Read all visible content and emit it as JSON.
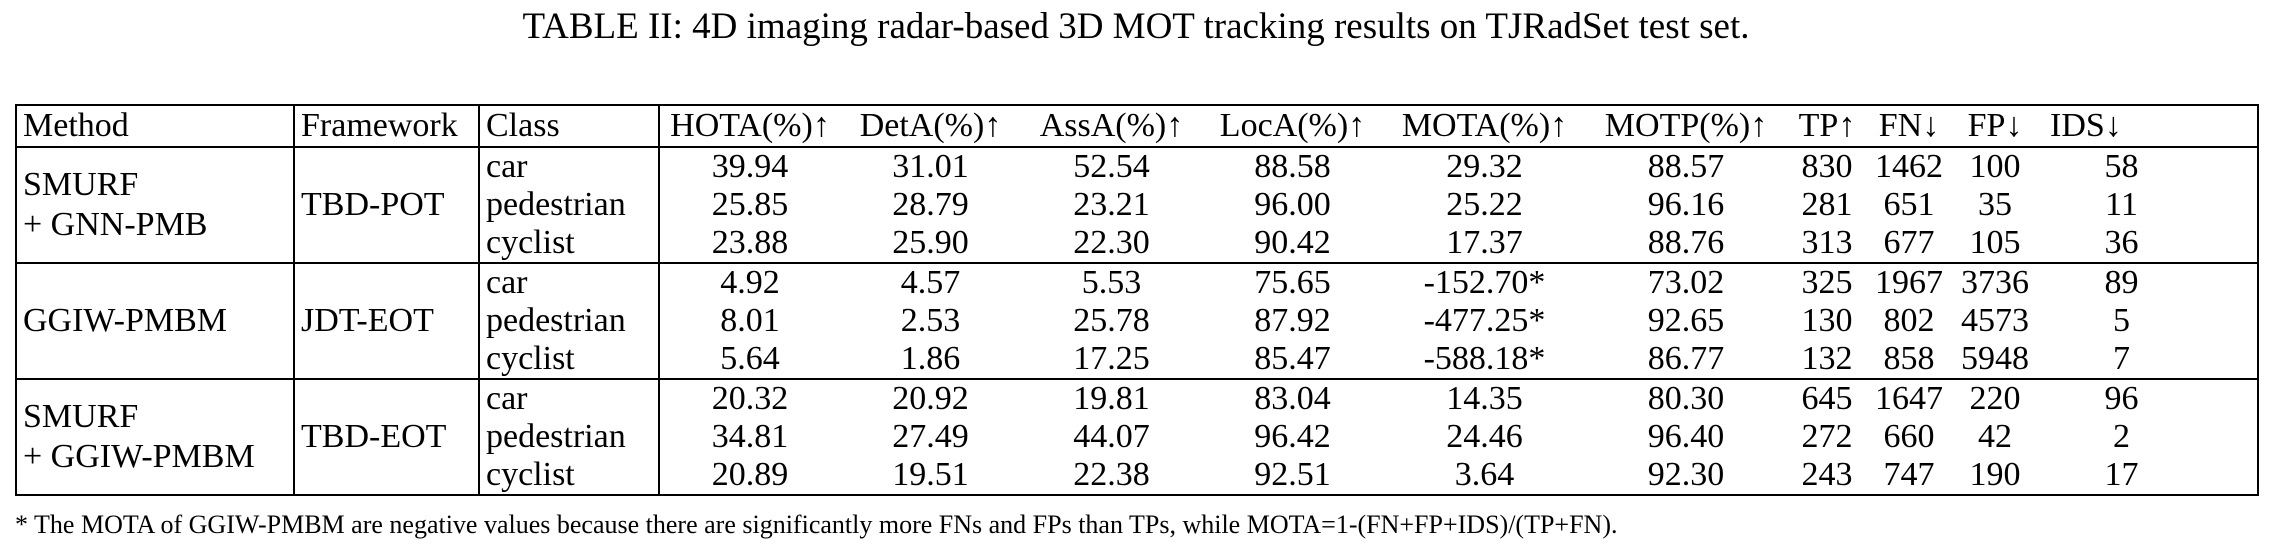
{
  "caption": "TABLE II: 4D imaging radar-based 3D MOT tracking results on TJRadSet test set.",
  "table": {
    "headers": [
      "Method",
      "Framework",
      "Class",
      "HOTA(%)↑",
      "DetA(%)↑",
      "AssA(%)↑",
      "LocA(%)↑",
      "MOTA(%)↑",
      "MOTP(%)↑",
      "TP↑",
      "FN↓",
      "FP↓",
      "IDS↓"
    ],
    "groups": [
      {
        "method_lines": [
          "SMURF",
          "+ GNN-PMB"
        ],
        "framework": "TBD-POT",
        "rows": [
          [
            "car",
            "39.94",
            "31.01",
            "52.54",
            "88.58",
            "29.32",
            "88.57",
            "830",
            "1462",
            "100",
            "58"
          ],
          [
            "pedestrian",
            "25.85",
            "28.79",
            "23.21",
            "96.00",
            "25.22",
            "96.16",
            "281",
            "651",
            "35",
            "11"
          ],
          [
            "cyclist",
            "23.88",
            "25.90",
            "22.30",
            "90.42",
            "17.37",
            "88.76",
            "313",
            "677",
            "105",
            "36"
          ]
        ]
      },
      {
        "method_lines": [
          "GGIW-PMBM"
        ],
        "framework": "JDT-EOT",
        "rows": [
          [
            "car",
            "4.92",
            "4.57",
            "5.53",
            "75.65",
            "-152.70*",
            "73.02",
            "325",
            "1967",
            "3736",
            "89"
          ],
          [
            "pedestrian",
            "8.01",
            "2.53",
            "25.78",
            "87.92",
            "-477.25*",
            "92.65",
            "130",
            "802",
            "4573",
            "5"
          ],
          [
            "cyclist",
            "5.64",
            "1.86",
            "17.25",
            "85.47",
            "-588.18*",
            "86.77",
            "132",
            "858",
            "5948",
            "7"
          ]
        ]
      },
      {
        "method_lines": [
          "SMURF",
          "+ GGIW-PMBM"
        ],
        "framework": "TBD-EOT",
        "rows": [
          [
            "car",
            "20.32",
            "20.92",
            "19.81",
            "83.04",
            "14.35",
            "80.30",
            "645",
            "1647",
            "220",
            "96"
          ],
          [
            "pedestrian",
            "34.81",
            "27.49",
            "44.07",
            "96.42",
            "24.46",
            "96.40",
            "272",
            "660",
            "42",
            "2"
          ],
          [
            "cyclist",
            "20.89",
            "19.51",
            "22.38",
            "92.51",
            "3.64",
            "92.30",
            "243",
            "747",
            "190",
            "17"
          ]
        ]
      }
    ]
  },
  "footnote": "* The MOTA of GGIW-PMBM are negative values because there are significantly more FNs and FPs than TPs, while MOTA=1-(FN+FP+IDS)/(TP+FN)."
}
